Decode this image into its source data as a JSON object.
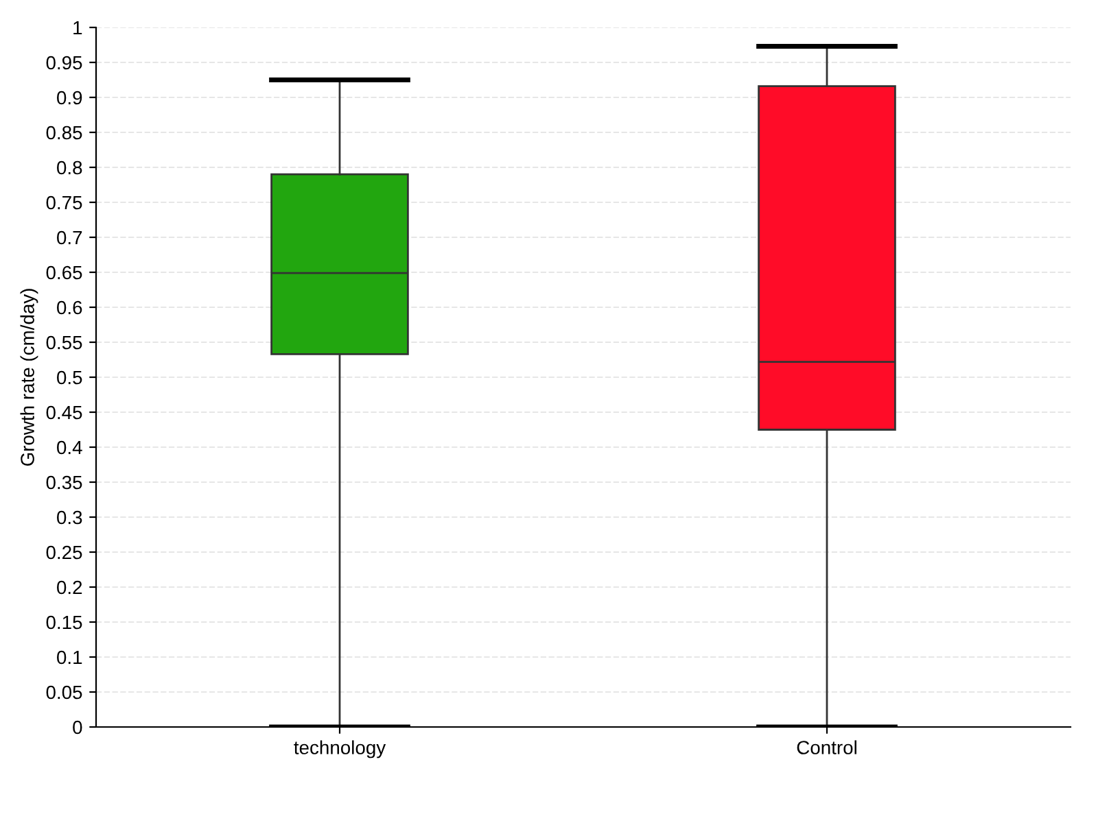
{
  "chart_data": {
    "type": "box",
    "ylabel": "Growth rate (cm/day)",
    "categories": [
      "technology",
      "Control"
    ],
    "colors": [
      "#22a60f",
      "#ff0c28"
    ],
    "boxes": [
      {
        "low": 0,
        "q1": 0.533,
        "median": 0.649,
        "q3": 0.79,
        "high": 0.925
      },
      {
        "low": 0,
        "q1": 0.425,
        "median": 0.522,
        "q3": 0.916,
        "high": 0.973
      }
    ],
    "ylim": [
      0,
      1
    ],
    "yticks": [
      0,
      0.05,
      0.1,
      0.15,
      0.2,
      0.25,
      0.3,
      0.35,
      0.4,
      0.45,
      0.5,
      0.55,
      0.6,
      0.65,
      0.7,
      0.75,
      0.8,
      0.85,
      0.9,
      0.95,
      1
    ],
    "grid": "y"
  }
}
